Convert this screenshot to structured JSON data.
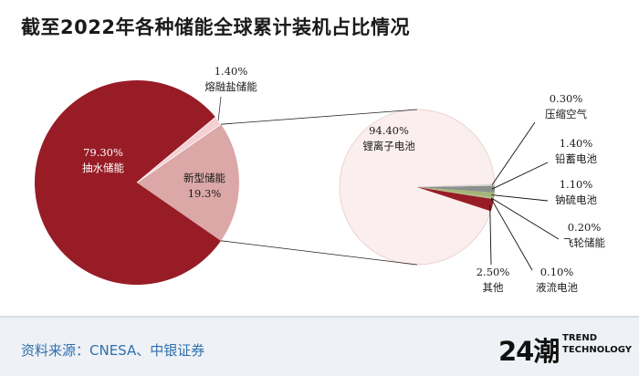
{
  "title": "截至2022年各种储能全球累计装机占比情况",
  "source": "资料来源：CNESA、中银证券",
  "logo": {
    "mark": "24潮",
    "line1": "TREND",
    "line2": "TECHNOLOGY"
  },
  "colors": {
    "pumped": "#981c26",
    "new_type": "#dba7a7",
    "molten_salt": "#f4cfd3",
    "lithium": "#fbeeee",
    "lead": "#8b8f8c",
    "sodium_sulfur": "#a3b579",
    "others": "#981c26"
  },
  "chart_data": [
    {
      "type": "pie",
      "title": "",
      "slices": [
        {
          "label": "抽水储能",
          "value": 79.3,
          "value_text": "79.30%"
        },
        {
          "label": "新型储能",
          "value": 19.3,
          "value_text": "19.3%"
        },
        {
          "label": "熔融盐储能",
          "value": 1.4,
          "value_text": "1.40%"
        }
      ]
    },
    {
      "type": "pie",
      "title": "",
      "slices": [
        {
          "label": "锂离子电池",
          "value": 94.4,
          "value_text": "94.40%"
        },
        {
          "label": "压缩空气",
          "value": 0.3,
          "value_text": "0.30%"
        },
        {
          "label": "铅蓄电池",
          "value": 1.4,
          "value_text": "1.40%"
        },
        {
          "label": "钠硫电池",
          "value": 1.1,
          "value_text": "1.10%"
        },
        {
          "label": "飞轮储能",
          "value": 0.2,
          "value_text": "0.20%"
        },
        {
          "label": "液流电池",
          "value": 0.1,
          "value_text": "0.10%"
        },
        {
          "label": "其他",
          "value": 2.5,
          "value_text": "2.50%"
        }
      ]
    }
  ]
}
